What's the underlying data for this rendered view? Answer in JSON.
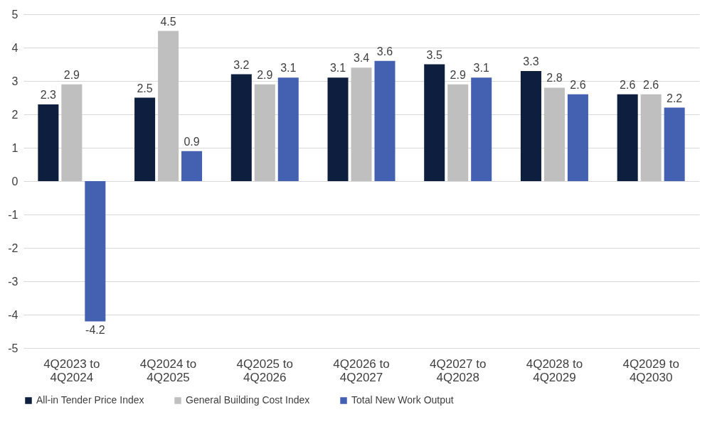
{
  "chart_data": {
    "type": "bar",
    "categories": [
      "4Q2023 to 4Q2024",
      "4Q2024 to 4Q2025",
      "4Q2025 to 4Q2026",
      "4Q2026 to 4Q2027",
      "4Q2027 to 4Q2028",
      "4Q2028 to 4Q2029",
      "4Q2029 to 4Q2030"
    ],
    "series": [
      {
        "name": "All-in Tender Price Index",
        "color": "#0e1e3f",
        "values": [
          2.3,
          2.5,
          3.2,
          3.1,
          3.5,
          3.3,
          2.6
        ]
      },
      {
        "name": "General Building Cost Index",
        "color": "#bfbfbf",
        "values": [
          2.9,
          4.5,
          2.9,
          3.4,
          2.9,
          2.8,
          2.6
        ]
      },
      {
        "name": "Total New Work Output",
        "color": "#4461b1",
        "values": [
          -4.2,
          0.9,
          3.1,
          3.6,
          3.1,
          2.6,
          2.2
        ]
      }
    ],
    "ylim": [
      -5,
      5
    ],
    "yticks": [
      -5,
      -4,
      -3,
      -2,
      -1,
      0,
      1,
      2,
      3,
      4,
      5
    ],
    "grid": "y",
    "legend": "bottom",
    "data_labels": true
  }
}
